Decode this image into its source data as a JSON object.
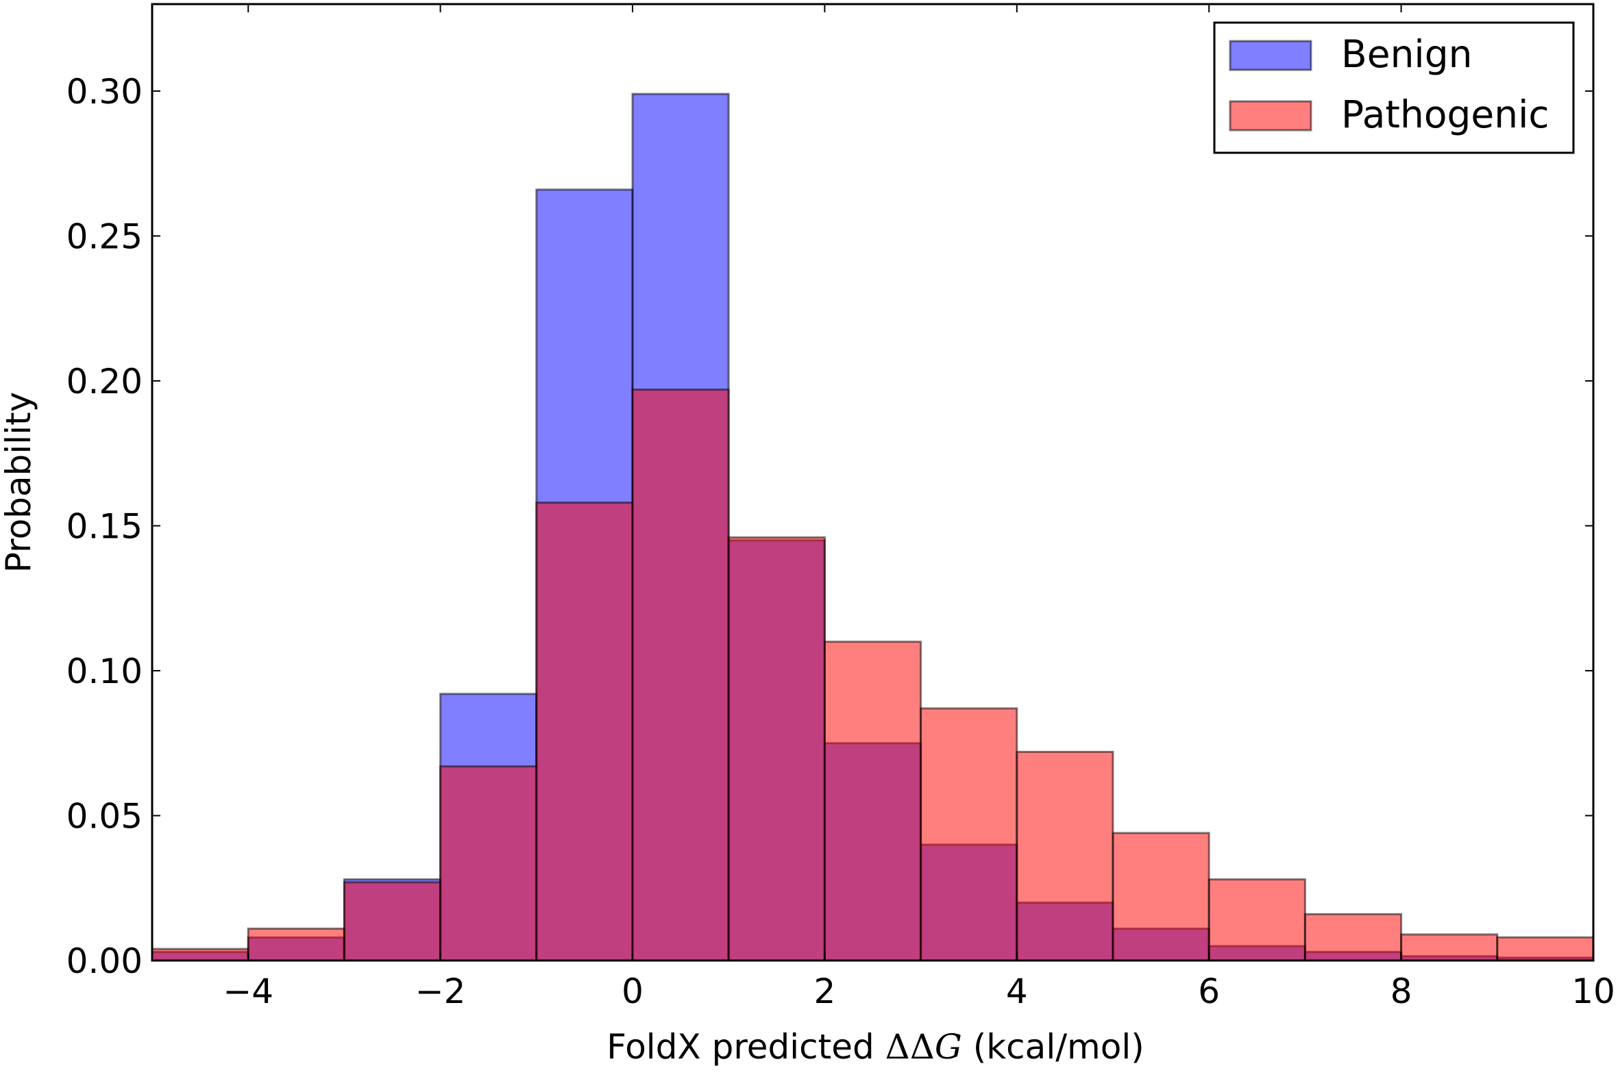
{
  "chart_data": {
    "type": "bar",
    "title": "",
    "xlabel_prefix": "FoldX predicted ",
    "xlabel_math_delta": "ΔΔ",
    "xlabel_math_var": "G",
    "xlabel_suffix": " (kcal/mol)",
    "ylabel": "Probability",
    "xlim": [
      -5,
      10
    ],
    "ylim": [
      0,
      0.33
    ],
    "xticks": [
      -4,
      -2,
      0,
      2,
      4,
      6,
      8,
      10
    ],
    "xtick_labels": [
      "−4",
      "−2",
      "0",
      "2",
      "4",
      "6",
      "8",
      "10"
    ],
    "yticks": [
      0.0,
      0.05,
      0.1,
      0.15,
      0.2,
      0.25,
      0.3
    ],
    "ytick_labels": [
      "0.00",
      "0.05",
      "0.10",
      "0.15",
      "0.20",
      "0.25",
      "0.30"
    ],
    "bin_edges": [
      -5,
      -4,
      -3,
      -2,
      -1,
      0,
      1,
      2,
      3,
      4,
      5,
      6,
      7,
      8,
      9,
      10
    ],
    "grid": false,
    "legend_position": "top-right",
    "series": [
      {
        "name": "Benign",
        "color": "#0000ff",
        "values": [
          0.003,
          0.008,
          0.028,
          0.092,
          0.266,
          0.299,
          0.145,
          0.075,
          0.04,
          0.02,
          0.011,
          0.005,
          0.003,
          0.0015,
          0.001
        ]
      },
      {
        "name": "Pathogenic",
        "color": "#ff0000",
        "values": [
          0.004,
          0.011,
          0.027,
          0.067,
          0.158,
          0.197,
          0.146,
          0.11,
          0.087,
          0.072,
          0.044,
          0.028,
          0.016,
          0.009,
          0.008
        ]
      }
    ]
  }
}
